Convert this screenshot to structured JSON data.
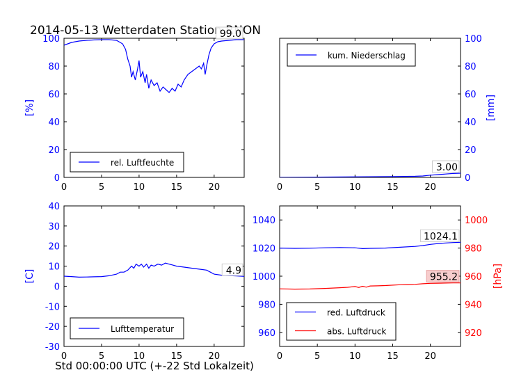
{
  "figure": {
    "title": "2014-05-13 Wetterdaten Station RNON",
    "xlabel": "Std 00:00:00 UTC (+-22 Std Lokalzeit)"
  },
  "colors": {
    "blue": "#0000ff",
    "red": "#ff0000",
    "black": "#000000",
    "ann_red_bg": "#f7c8c8"
  },
  "chart_data": [
    {
      "id": "humidity",
      "type": "line",
      "title": "2014-05-13 Wetterdaten Station RNON",
      "xlabel": "",
      "ylabel": "[%]",
      "xlim": [
        0,
        24
      ],
      "ylim": [
        0,
        100
      ],
      "xticks": [
        0,
        5,
        10,
        15,
        20
      ],
      "yticks": [
        0,
        20,
        40,
        60,
        80,
        100
      ],
      "legend": "lower-left",
      "grid": false,
      "annotation": "99.0",
      "series": [
        {
          "name": "rel. Luftfeuchte",
          "color": "#0000ff",
          "x": [
            0,
            0.5,
            1,
            2,
            3,
            4,
            5,
            6,
            7,
            7.8,
            8.2,
            8.5,
            8.8,
            9.0,
            9.2,
            9.5,
            9.8,
            10.0,
            10.2,
            10.5,
            10.8,
            11.0,
            11.3,
            11.6,
            12.0,
            12.4,
            12.8,
            13.2,
            13.6,
            14.0,
            14.4,
            14.8,
            15.2,
            15.6,
            16.0,
            16.5,
            17.0,
            17.5,
            18.0,
            18.3,
            18.6,
            18.8,
            19.0,
            19.3,
            19.6,
            20.0,
            20.5,
            21.0,
            22.0,
            23.0,
            24
          ],
          "y": [
            95,
            96,
            97,
            98,
            98.5,
            98.8,
            99,
            99,
            98.5,
            96,
            92,
            85,
            80,
            72,
            76,
            70,
            78,
            84,
            72,
            76,
            68,
            74,
            64,
            70,
            66,
            68,
            62,
            65,
            63,
            61,
            64,
            62,
            67,
            65,
            70,
            74,
            76,
            78,
            80,
            78,
            82,
            74,
            80,
            88,
            93,
            96,
            97.5,
            98,
            98.5,
            99,
            99
          ]
        }
      ]
    },
    {
      "id": "precipitation",
      "type": "line",
      "ylabel": "[mm]",
      "xlim": [
        0,
        24
      ],
      "ylim": [
        0,
        100
      ],
      "xticks": [
        0,
        5,
        10,
        15,
        20
      ],
      "yticks": [
        0,
        20,
        40,
        60,
        80,
        100
      ],
      "legend": "upper-left",
      "grid": false,
      "annotation": "3.00",
      "series": [
        {
          "name": "kum. Niederschlag",
          "color": "#0000ff",
          "x": [
            0,
            5,
            10,
            15,
            18,
            19,
            20,
            21,
            22,
            23,
            24
          ],
          "y": [
            0,
            0.2,
            0.4,
            0.6,
            0.8,
            1.0,
            1.6,
            2.0,
            2.4,
            2.8,
            3.0
          ]
        }
      ]
    },
    {
      "id": "temperature",
      "type": "line",
      "ylabel": "[C]",
      "xlim": [
        0,
        24
      ],
      "ylim": [
        -30,
        40
      ],
      "xticks": [
        0,
        5,
        10,
        15,
        20
      ],
      "yticks": [
        -30,
        -20,
        -10,
        0,
        10,
        20,
        30,
        40
      ],
      "legend": "lower-left",
      "grid": false,
      "annotation": "4.9",
      "series": [
        {
          "name": "Lufttemperatur",
          "color": "#0000ff",
          "x": [
            0,
            1,
            2,
            3,
            4,
            5,
            6,
            7,
            7.5,
            8,
            8.5,
            9,
            9.3,
            9.6,
            10,
            10.3,
            10.6,
            11,
            11.3,
            11.6,
            12,
            12.5,
            13,
            13.5,
            14,
            14.5,
            15,
            16,
            17,
            18,
            19,
            19.5,
            20,
            21,
            22,
            23,
            24
          ],
          "y": [
            5,
            4.8,
            4.5,
            4.6,
            4.7,
            4.8,
            5.2,
            6,
            7,
            7,
            8,
            10,
            9,
            11,
            10,
            11,
            9.5,
            11,
            9,
            10.5,
            10,
            11,
            10.5,
            11.5,
            11,
            10.5,
            10,
            9.5,
            9,
            8.5,
            8,
            7,
            6,
            5.5,
            5.3,
            5.1,
            4.9
          ]
        }
      ]
    },
    {
      "id": "pressure",
      "type": "line",
      "xlim": [
        0,
        24
      ],
      "ylim": [
        950,
        1050
      ],
      "ylim_right": [
        910,
        1010
      ],
      "ylabel_right": "[hPa]",
      "xticks": [
        0,
        5,
        10,
        15,
        20
      ],
      "yticks": [
        960,
        980,
        1000,
        1020,
        1040
      ],
      "yticks_right": [
        920,
        940,
        960,
        980,
        1000
      ],
      "legend": "lower-left",
      "grid": false,
      "annotations": [
        "1024.1",
        "955.2"
      ],
      "series": [
        {
          "name": "red. Luftdruck",
          "color": "#0000ff",
          "axis": "left",
          "x": [
            0,
            2,
            4,
            6,
            8,
            10,
            11,
            12,
            14,
            16,
            18,
            19,
            20,
            21,
            22,
            23,
            24
          ],
          "y": [
            1020,
            1019.8,
            1019.9,
            1020.2,
            1020.4,
            1020.2,
            1019.6,
            1019.8,
            1020,
            1020.6,
            1021.2,
            1021.8,
            1022.6,
            1023.2,
            1023.6,
            1023.9,
            1024.1
          ]
        },
        {
          "name": "abs. Luftdruck",
          "color": "#ff0000",
          "axis": "right",
          "x": [
            0,
            2,
            4,
            6,
            8,
            9,
            10,
            10.5,
            11,
            11.5,
            12,
            13,
            14,
            15,
            16,
            17,
            18,
            19,
            20,
            21,
            22,
            23,
            24
          ],
          "y": [
            951,
            950.8,
            950.9,
            951.3,
            951.8,
            952.1,
            952.6,
            952.0,
            952.8,
            952.2,
            953.0,
            953.1,
            953.3,
            953.6,
            953.9,
            954.0,
            954.2,
            954.6,
            954.9,
            955.0,
            955.1,
            955.2,
            955.2
          ]
        }
      ]
    }
  ]
}
